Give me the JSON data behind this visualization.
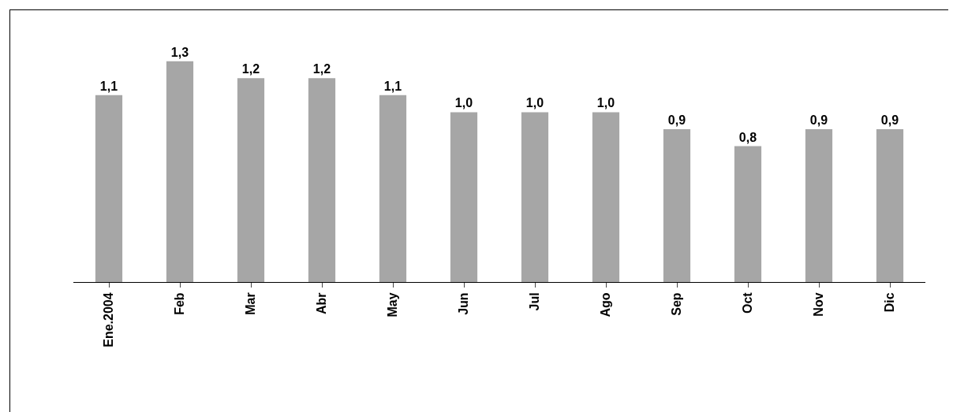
{
  "chart_data": {
    "type": "bar",
    "categories": [
      "Ene.2004",
      "Feb",
      "Mar",
      "Abr",
      "May",
      "Jun",
      "Jul",
      "Ago",
      "Sep",
      "Oct",
      "Nov",
      "Dic"
    ],
    "values": [
      1.1,
      1.3,
      1.2,
      1.2,
      1.1,
      1.0,
      1.0,
      1.0,
      0.9,
      0.8,
      0.9,
      0.9
    ],
    "value_labels": [
      "1,1",
      "1,3",
      "1,2",
      "1,2",
      "1,1",
      "1,0",
      "1,0",
      "1,0",
      "0,9",
      "0,8",
      "0,9",
      "0,9"
    ],
    "color": "#a6a6a6"
  }
}
